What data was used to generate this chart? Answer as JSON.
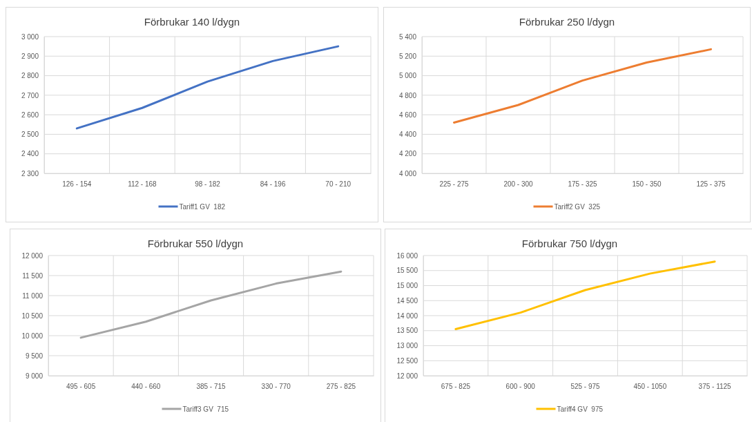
{
  "chart_data": [
    {
      "type": "line",
      "title": "Förbrukar 140 l/dygn",
      "categories": [
        "126 - 154",
        "112 - 168",
        "98 - 182",
        "84 - 196",
        "70 - 210"
      ],
      "series": [
        {
          "name": "Tariff1 GV  182",
          "color": "#4472c4",
          "values": [
            2530,
            2635,
            2770,
            2875,
            2950
          ]
        }
      ],
      "ylim": [
        2300,
        3000
      ],
      "yticks": [
        {
          "value": 2300,
          "label": "2 300"
        },
        {
          "value": 2400,
          "label": "2 400"
        },
        {
          "value": 2500,
          "label": "2 500"
        },
        {
          "value": 2600,
          "label": "2 600"
        },
        {
          "value": 2700,
          "label": "2 700"
        },
        {
          "value": 2800,
          "label": "2 800"
        },
        {
          "value": 2900,
          "label": "2 900"
        },
        {
          "value": 3000,
          "label": "3 000"
        }
      ],
      "grid": true,
      "legend": "bottom"
    },
    {
      "type": "line",
      "title": "Förbrukar 250 l/dygn",
      "categories": [
        "225 - 275",
        "200 - 300",
        "175 - 325",
        "150 - 350",
        "125 - 375"
      ],
      "series": [
        {
          "name": "Tariff2 GV  325",
          "color": "#ed7d31",
          "values": [
            4520,
            4700,
            4950,
            5135,
            5270
          ]
        }
      ],
      "ylim": [
        4000,
        5400
      ],
      "yticks": [
        {
          "value": 4000,
          "label": "4 000"
        },
        {
          "value": 4200,
          "label": "4 200"
        },
        {
          "value": 4400,
          "label": "4 400"
        },
        {
          "value": 4600,
          "label": "4 600"
        },
        {
          "value": 4800,
          "label": "4 800"
        },
        {
          "value": 5000,
          "label": "5 000"
        },
        {
          "value": 5200,
          "label": "5 200"
        },
        {
          "value": 5400,
          "label": "5 400"
        }
      ],
      "grid": true,
      "legend": "bottom"
    },
    {
      "type": "line",
      "title": "Förbrukar 550 l/dygn",
      "categories": [
        "495 - 605",
        "440 - 660",
        "385 - 715",
        "330 - 770",
        "275 - 825"
      ],
      "series": [
        {
          "name": "Tariff3 GV  715",
          "color": "#a5a5a5",
          "values": [
            9950,
            10350,
            10880,
            11300,
            11600
          ]
        }
      ],
      "ylim": [
        9000,
        12000
      ],
      "yticks": [
        {
          "value": 9000,
          "label": "9 000"
        },
        {
          "value": 9500,
          "label": "9 500"
        },
        {
          "value": 10000,
          "label": "10 000"
        },
        {
          "value": 10500,
          "label": "10 500"
        },
        {
          "value": 11000,
          "label": "11 000"
        },
        {
          "value": 11500,
          "label": "11 500"
        },
        {
          "value": 12000,
          "label": "12 000"
        }
      ],
      "grid": true,
      "legend": "bottom"
    },
    {
      "type": "line",
      "title": "Förbrukar 750 l/dygn",
      "categories": [
        "675 - 825",
        "600 - 900",
        "525 - 975",
        "450 - 1050",
        "375 - 1125"
      ],
      "series": [
        {
          "name": "Tariff4 GV  975",
          "color": "#ffc000",
          "values": [
            13550,
            14100,
            14850,
            15400,
            15800
          ]
        }
      ],
      "ylim": [
        12000,
        16000
      ],
      "yticks": [
        {
          "value": 12000,
          "label": "12 000"
        },
        {
          "value": 12500,
          "label": "12 500"
        },
        {
          "value": 13000,
          "label": "13 000"
        },
        {
          "value": 13500,
          "label": "13 500"
        },
        {
          "value": 14000,
          "label": "14 000"
        },
        {
          "value": 14500,
          "label": "14 500"
        },
        {
          "value": 15000,
          "label": "15 000"
        },
        {
          "value": 15500,
          "label": "15 500"
        },
        {
          "value": 16000,
          "label": "16 000"
        }
      ],
      "grid": true,
      "legend": "bottom"
    }
  ]
}
